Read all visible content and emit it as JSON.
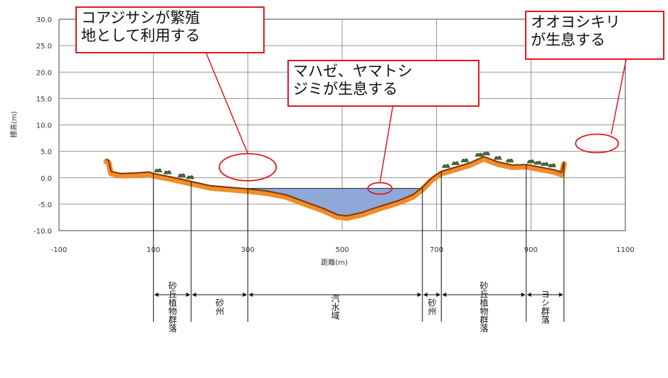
{
  "chart_data": {
    "type": "area",
    "xlabel": "距離(m)",
    "ylabel": "標高(m)",
    "xlim": [
      -100,
      1100
    ],
    "ylim": [
      -10,
      30
    ],
    "x_ticks": [
      "-100",
      "100",
      "300",
      "500",
      "700",
      "900",
      "1100"
    ],
    "y_ticks": [
      "30.0",
      "25.0",
      "20.0",
      "15.0",
      "10.0",
      "5.0",
      "0.0",
      "-5.0",
      "-10.0"
    ],
    "grid": true,
    "water_level": -2.0,
    "profile": [
      {
        "x": 0,
        "y": 3.5
      },
      {
        "x": 5,
        "y": 3.3
      },
      {
        "x": 10,
        "y": 1.2
      },
      {
        "x": 30,
        "y": 0.8
      },
      {
        "x": 60,
        "y": 0.9
      },
      {
        "x": 90,
        "y": 1.1
      },
      {
        "x": 100,
        "y": 0.8
      },
      {
        "x": 140,
        "y": 0.1
      },
      {
        "x": 180,
        "y": -0.7
      },
      {
        "x": 220,
        "y": -1.5
      },
      {
        "x": 260,
        "y": -1.8
      },
      {
        "x": 300,
        "y": -2.1
      },
      {
        "x": 340,
        "y": -2.5
      },
      {
        "x": 380,
        "y": -3.2
      },
      {
        "x": 420,
        "y": -4.5
      },
      {
        "x": 460,
        "y": -5.8
      },
      {
        "x": 490,
        "y": -7.0
      },
      {
        "x": 510,
        "y": -7.2
      },
      {
        "x": 540,
        "y": -6.6
      },
      {
        "x": 580,
        "y": -5.4
      },
      {
        "x": 620,
        "y": -4.3
      },
      {
        "x": 650,
        "y": -3.2
      },
      {
        "x": 670,
        "y": -1.8
      },
      {
        "x": 690,
        "y": 0.0
      },
      {
        "x": 710,
        "y": 1.2
      },
      {
        "x": 740,
        "y": 2.0
      },
      {
        "x": 770,
        "y": 2.8
      },
      {
        "x": 800,
        "y": 4.0
      },
      {
        "x": 830,
        "y": 3.0
      },
      {
        "x": 860,
        "y": 2.4
      },
      {
        "x": 890,
        "y": 2.5
      },
      {
        "x": 920,
        "y": 2.0
      },
      {
        "x": 950,
        "y": 1.5
      },
      {
        "x": 965,
        "y": 1.0
      },
      {
        "x": 970,
        "y": 3.0
      }
    ],
    "zones": [
      {
        "label": "砂丘植物群落",
        "x0": 100,
        "x1": 180
      },
      {
        "label": "砂州",
        "x0": 180,
        "x1": 300
      },
      {
        "label": "汽水域",
        "x0": 300,
        "x1": 670
      },
      {
        "label": "砂州",
        "x0": 670,
        "x1": 710
      },
      {
        "label": "砂丘植物群落",
        "x0": 710,
        "x1": 890
      },
      {
        "label": "ヨシ群落",
        "x0": 890,
        "x1": 970
      }
    ]
  },
  "callouts": [
    {
      "text": "コアジサシが繁殖\n地として利用する",
      "target_x": 300,
      "target_y": 2.0
    },
    {
      "text": "マハゼ、ヤマトシ\nジミが生息する",
      "target_x": 580,
      "target_y": -2.0
    },
    {
      "text": "オオヨシキリ\nが生息する",
      "target_x": 1040,
      "target_y": 6.5
    }
  ],
  "colors": {
    "water": "#8ea8d8",
    "ground": "#f28c2a",
    "ground_line": "#7a3a10",
    "callout_border": "#e0191f",
    "grid": "#777777"
  }
}
